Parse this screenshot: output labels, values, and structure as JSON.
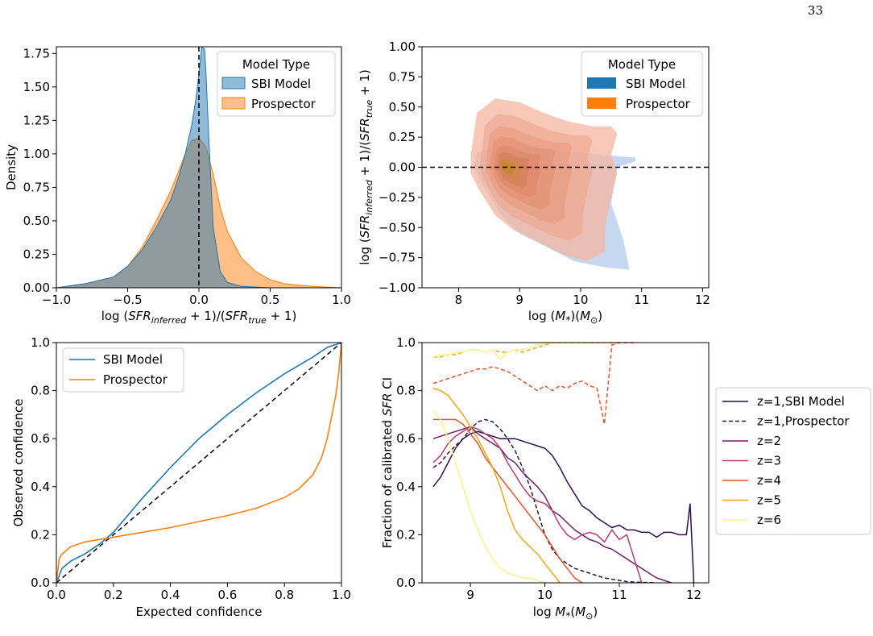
{
  "page_number": "33",
  "chart_data": [
    {
      "id": "density",
      "type": "area",
      "xlabel_parts": [
        "log (",
        "SFR",
        "inferred",
        " + 1)/(",
        "SFR",
        "true",
        " + 1)"
      ],
      "ylabel": "Density",
      "xlim": [
        -1.0,
        1.0
      ],
      "ylim": [
        0.0,
        1.8
      ],
      "xticks": [
        "−1.0",
        "−0.5",
        "0.0",
        "0.5",
        "1.0"
      ],
      "yticks": [
        "0.00",
        "0.25",
        "0.50",
        "0.75",
        "1.00",
        "1.25",
        "1.50",
        "1.75"
      ],
      "legend": {
        "title": "Model Type",
        "placement": "top-right"
      },
      "vline_x": 0.0,
      "series": [
        {
          "name": "SBI Model",
          "color": "#1f77b4",
          "x": [
            -1.0,
            -0.8,
            -0.6,
            -0.5,
            -0.4,
            -0.3,
            -0.2,
            -0.15,
            -0.1,
            -0.05,
            -0.02,
            0.0,
            0.02,
            0.04,
            0.05,
            0.07,
            0.1,
            0.15,
            0.2,
            0.3,
            0.5,
            1.0
          ],
          "y": [
            0.0,
            0.03,
            0.08,
            0.16,
            0.28,
            0.45,
            0.65,
            0.8,
            0.98,
            1.22,
            1.42,
            1.6,
            1.8,
            1.78,
            1.6,
            1.1,
            0.45,
            0.12,
            0.04,
            0.01,
            0.0,
            0.0
          ]
        },
        {
          "name": "Prospector",
          "color": "#ff7f0e",
          "x": [
            -1.0,
            -0.8,
            -0.6,
            -0.5,
            -0.4,
            -0.3,
            -0.2,
            -0.15,
            -0.1,
            -0.05,
            0.0,
            0.05,
            0.1,
            0.15,
            0.2,
            0.3,
            0.4,
            0.5,
            0.6,
            0.8,
            1.0
          ],
          "y": [
            0.0,
            0.03,
            0.08,
            0.16,
            0.3,
            0.5,
            0.72,
            0.85,
            0.99,
            1.1,
            1.12,
            1.05,
            0.85,
            0.6,
            0.42,
            0.22,
            0.12,
            0.06,
            0.03,
            0.01,
            0.0
          ]
        }
      ]
    },
    {
      "id": "kde",
      "type": "contour",
      "xlabel_parts": [
        "log (",
        "M",
        "*",
        ")(",
        "M",
        "⊙",
        ")"
      ],
      "ylabel_parts": [
        "log (",
        "SFR",
        "inferred",
        " + 1)/(",
        "SFR",
        "true",
        " + 1)"
      ],
      "xlim": [
        7.4,
        12.1
      ],
      "ylim": [
        -1.0,
        1.0
      ],
      "xticks": [
        "8",
        "9",
        "10",
        "11",
        "12"
      ],
      "yticks": [
        "−1.00",
        "−0.75",
        "−0.50",
        "−0.25",
        "0.00",
        "0.25",
        "0.50",
        "0.75",
        "1.00"
      ],
      "hline_y": 0.0,
      "legend": {
        "title": "Model Type",
        "placement": "top-right"
      },
      "series": [
        {
          "name": "SBI Model",
          "color": "#1f77b4",
          "center": [
            8.75,
            0.0
          ]
        },
        {
          "name": "Prospector",
          "color": "#ff7f0e",
          "center": [
            8.75,
            0.0
          ]
        }
      ]
    },
    {
      "id": "calibration",
      "type": "line",
      "xlabel": "Expected confidence",
      "ylabel": "Observed confidence",
      "xlim": [
        0.0,
        1.0
      ],
      "ylim": [
        0.0,
        1.0
      ],
      "xticks": [
        "0.0",
        "0.2",
        "0.4",
        "0.6",
        "0.8",
        "1.0"
      ],
      "yticks": [
        "0.0",
        "0.2",
        "0.4",
        "0.6",
        "0.8",
        "1.0"
      ],
      "legend": {
        "placement": "top-left"
      },
      "diagonal": true,
      "series": [
        {
          "name": "SBI Model",
          "color": "#1f77b4",
          "x": [
            0.0,
            0.02,
            0.05,
            0.1,
            0.15,
            0.2,
            0.25,
            0.3,
            0.4,
            0.5,
            0.6,
            0.7,
            0.8,
            0.9,
            0.95,
            1.0
          ],
          "y": [
            0.0,
            0.06,
            0.09,
            0.12,
            0.16,
            0.21,
            0.28,
            0.35,
            0.48,
            0.6,
            0.7,
            0.79,
            0.87,
            0.94,
            0.98,
            1.0
          ]
        },
        {
          "name": "Prospector",
          "color": "#ff7f0e",
          "x": [
            0.0,
            0.01,
            0.02,
            0.05,
            0.1,
            0.2,
            0.3,
            0.4,
            0.5,
            0.6,
            0.7,
            0.8,
            0.85,
            0.9,
            0.93,
            0.95,
            0.97,
            0.98,
            0.99,
            1.0
          ],
          "y": [
            0.0,
            0.1,
            0.12,
            0.15,
            0.17,
            0.19,
            0.21,
            0.23,
            0.255,
            0.28,
            0.31,
            0.355,
            0.39,
            0.45,
            0.52,
            0.6,
            0.72,
            0.78,
            0.87,
            1.0
          ]
        }
      ]
    },
    {
      "id": "fraction",
      "type": "line",
      "xlabel_parts": [
        "log ",
        "M",
        "*",
        "(",
        "M",
        "⊙",
        ")"
      ],
      "ylabel_parts": [
        "Fraction of calibrated ",
        "SFR",
        " CI"
      ],
      "xlim": [
        8.35,
        12.2
      ],
      "ylim": [
        0.0,
        1.0
      ],
      "xticks": [
        "9",
        "10",
        "11",
        "12"
      ],
      "yticks": [
        "0.0",
        "0.2",
        "0.4",
        "0.6",
        "0.8",
        "1.0"
      ],
      "legend": {
        "placement": "outside-right"
      },
      "series": [
        {
          "name": "z=1,SBI Model",
          "color": "#2d0f4c",
          "dash": false,
          "x": [
            8.5,
            8.6,
            8.7,
            8.8,
            8.9,
            9.0,
            9.1,
            9.2,
            9.3,
            9.4,
            9.5,
            9.6,
            9.7,
            9.8,
            9.9,
            10.0,
            10.1,
            10.2,
            10.3,
            10.4,
            10.5,
            10.6,
            10.7,
            10.8,
            10.9,
            11.0,
            11.1,
            11.2,
            11.3,
            11.4,
            11.5,
            11.6,
            11.7,
            11.8,
            11.9,
            11.95,
            12.0
          ],
          "y": [
            0.4,
            0.44,
            0.5,
            0.56,
            0.6,
            0.62,
            0.63,
            0.62,
            0.61,
            0.6,
            0.6,
            0.6,
            0.59,
            0.58,
            0.57,
            0.56,
            0.53,
            0.48,
            0.42,
            0.37,
            0.32,
            0.3,
            0.27,
            0.25,
            0.23,
            0.24,
            0.22,
            0.22,
            0.21,
            0.21,
            0.19,
            0.21,
            0.21,
            0.2,
            0.2,
            0.33,
            0.0
          ]
        },
        {
          "name": "z=1,Prospector",
          "color": "#2d0f4c",
          "dash": true,
          "x": [
            8.5,
            8.6,
            8.7,
            8.8,
            8.9,
            9.0,
            9.1,
            9.2,
            9.3,
            9.4,
            9.5,
            9.6,
            9.7,
            9.8,
            9.9,
            10.0,
            10.1,
            10.2,
            10.3,
            10.4,
            10.5,
            10.6,
            10.7,
            10.8,
            10.9,
            11.0,
            11.1,
            11.2,
            11.3,
            11.4,
            11.5
          ],
          "y": [
            0.48,
            0.5,
            0.54,
            0.57,
            0.6,
            0.64,
            0.67,
            0.68,
            0.67,
            0.64,
            0.6,
            0.55,
            0.48,
            0.4,
            0.3,
            0.2,
            0.14,
            0.1,
            0.08,
            0.06,
            0.05,
            0.04,
            0.03,
            0.02,
            0.015,
            0.01,
            0.005,
            0.003,
            0.002,
            0.001,
            0.0
          ]
        },
        {
          "name": "z=2",
          "color": "#6b1f6b",
          "dash": false,
          "x": [
            8.5,
            8.6,
            8.7,
            8.8,
            8.9,
            9.0,
            9.1,
            9.2,
            9.3,
            9.4,
            9.5,
            9.6,
            9.7,
            9.8,
            9.9,
            10.0,
            10.1,
            10.2,
            10.3,
            10.4,
            10.5,
            10.6,
            10.7,
            10.8,
            10.9,
            11.0,
            11.1,
            11.2,
            11.3,
            11.4,
            11.5,
            11.6,
            11.7
          ],
          "y": [
            0.6,
            0.61,
            0.62,
            0.63,
            0.64,
            0.65,
            0.62,
            0.6,
            0.58,
            0.56,
            0.52,
            0.5,
            0.46,
            0.43,
            0.4,
            0.36,
            0.3,
            0.28,
            0.25,
            0.22,
            0.2,
            0.18,
            0.17,
            0.15,
            0.14,
            0.12,
            0.1,
            0.08,
            0.06,
            0.04,
            0.02,
            0.01,
            0.0
          ]
        },
        {
          "name": "z=3",
          "color": "#b83b6a",
          "dash": false,
          "x": [
            8.5,
            8.6,
            8.7,
            8.8,
            8.9,
            9.0,
            9.1,
            9.2,
            9.3,
            9.4,
            9.5,
            9.6,
            9.7,
            9.8,
            9.9,
            10.0,
            10.1,
            10.2,
            10.3,
            10.4,
            10.5,
            10.6,
            10.7,
            10.8,
            10.9,
            11.0,
            11.1,
            11.2,
            11.3
          ],
          "y": [
            0.5,
            0.53,
            0.58,
            0.61,
            0.63,
            0.65,
            0.64,
            0.62,
            0.6,
            0.56,
            0.5,
            0.45,
            0.4,
            0.36,
            0.34,
            0.33,
            0.3,
            0.24,
            0.2,
            0.18,
            0.2,
            0.21,
            0.2,
            0.17,
            0.22,
            0.18,
            0.2,
            0.1,
            0.0
          ]
        },
        {
          "name": "z=4",
          "color": "#e0552b",
          "dash": false,
          "x": [
            8.5,
            8.6,
            8.7,
            8.8,
            8.9,
            9.0,
            9.1,
            9.2,
            9.3,
            9.4,
            9.5,
            9.6,
            9.7,
            9.8,
            9.9,
            10.0,
            10.1,
            10.2,
            10.3,
            10.4,
            10.5
          ],
          "y": [
            0.68,
            0.68,
            0.68,
            0.68,
            0.66,
            0.62,
            0.58,
            0.52,
            0.48,
            0.44,
            0.4,
            0.36,
            0.32,
            0.28,
            0.24,
            0.2,
            0.15,
            0.1,
            0.06,
            0.02,
            0.0
          ]
        },
        {
          "name": "z=5",
          "color": "#f2a516",
          "dash": false,
          "x": [
            8.5,
            8.6,
            8.7,
            8.8,
            8.9,
            9.0,
            9.1,
            9.2,
            9.3,
            9.4,
            9.5,
            9.6,
            9.7,
            9.8,
            9.9,
            10.0,
            10.1,
            10.2
          ],
          "y": [
            0.81,
            0.8,
            0.78,
            0.74,
            0.7,
            0.65,
            0.6,
            0.54,
            0.48,
            0.4,
            0.3,
            0.22,
            0.18,
            0.15,
            0.12,
            0.08,
            0.04,
            0.0
          ]
        },
        {
          "name": "z=6",
          "color": "#fcf28c",
          "dash": false,
          "x": [
            8.5,
            8.6,
            8.7,
            8.8,
            8.9,
            9.0,
            9.1,
            9.2,
            9.3,
            9.4,
            9.5,
            9.6,
            9.7,
            9.8,
            9.9,
            10.0
          ],
          "y": [
            0.72,
            0.68,
            0.6,
            0.5,
            0.4,
            0.3,
            0.22,
            0.15,
            0.1,
            0.06,
            0.04,
            0.03,
            0.02,
            0.02,
            0.01,
            0.0
          ]
        },
        {
          "name": "z=5-upper",
          "color": "#f2a516",
          "dash": true,
          "legend": false,
          "x": [
            8.5,
            8.6,
            8.7,
            8.8,
            8.9,
            9.0,
            9.1,
            9.2,
            9.3,
            9.4,
            9.5,
            9.6,
            9.7,
            9.8,
            9.9,
            10.0,
            10.1,
            10.2,
            10.3,
            10.4,
            10.5,
            10.6,
            10.7,
            10.8,
            10.9,
            11.0
          ],
          "y": [
            0.94,
            0.94,
            0.95,
            0.95,
            0.96,
            0.97,
            0.97,
            0.96,
            0.97,
            0.96,
            0.96,
            0.97,
            0.96,
            0.97,
            0.98,
            0.99,
            1.0,
            1.0,
            1.0,
            1.0,
            1.0,
            1.0,
            1.0,
            1.0,
            1.0,
            1.0
          ]
        },
        {
          "name": "z=6-upper",
          "color": "#fcf28c",
          "dash": false,
          "legend": false,
          "x": [
            8.5,
            8.6,
            8.7,
            8.8,
            8.9,
            9.0,
            9.1,
            9.2,
            9.3,
            9.4,
            9.5,
            9.6,
            9.7,
            9.8,
            9.9,
            10.0,
            10.2,
            10.4,
            10.6
          ],
          "y": [
            0.94,
            0.95,
            0.95,
            0.96,
            0.96,
            0.97,
            0.97,
            0.96,
            0.97,
            0.93,
            0.96,
            0.97,
            0.97,
            0.98,
            0.99,
            1.0,
            1.0,
            1.0,
            1.0
          ]
        },
        {
          "name": "z=4-upper",
          "color": "#e0552b",
          "dash": true,
          "legend": false,
          "x": [
            8.5,
            8.6,
            8.7,
            8.8,
            8.9,
            9.0,
            9.1,
            9.2,
            9.3,
            9.4,
            9.5,
            9.6,
            9.7,
            9.8,
            9.9,
            10.0,
            10.1,
            10.2,
            10.3,
            10.4,
            10.5,
            10.6,
            10.7,
            10.8,
            10.9,
            11.0,
            11.1,
            11.2
          ],
          "y": [
            0.83,
            0.84,
            0.85,
            0.86,
            0.87,
            0.88,
            0.89,
            0.89,
            0.9,
            0.89,
            0.88,
            0.86,
            0.84,
            0.82,
            0.8,
            0.82,
            0.8,
            0.82,
            0.81,
            0.83,
            0.84,
            0.82,
            0.81,
            0.66,
            0.99,
            1.0,
            1.0,
            1.0
          ]
        }
      ]
    }
  ]
}
